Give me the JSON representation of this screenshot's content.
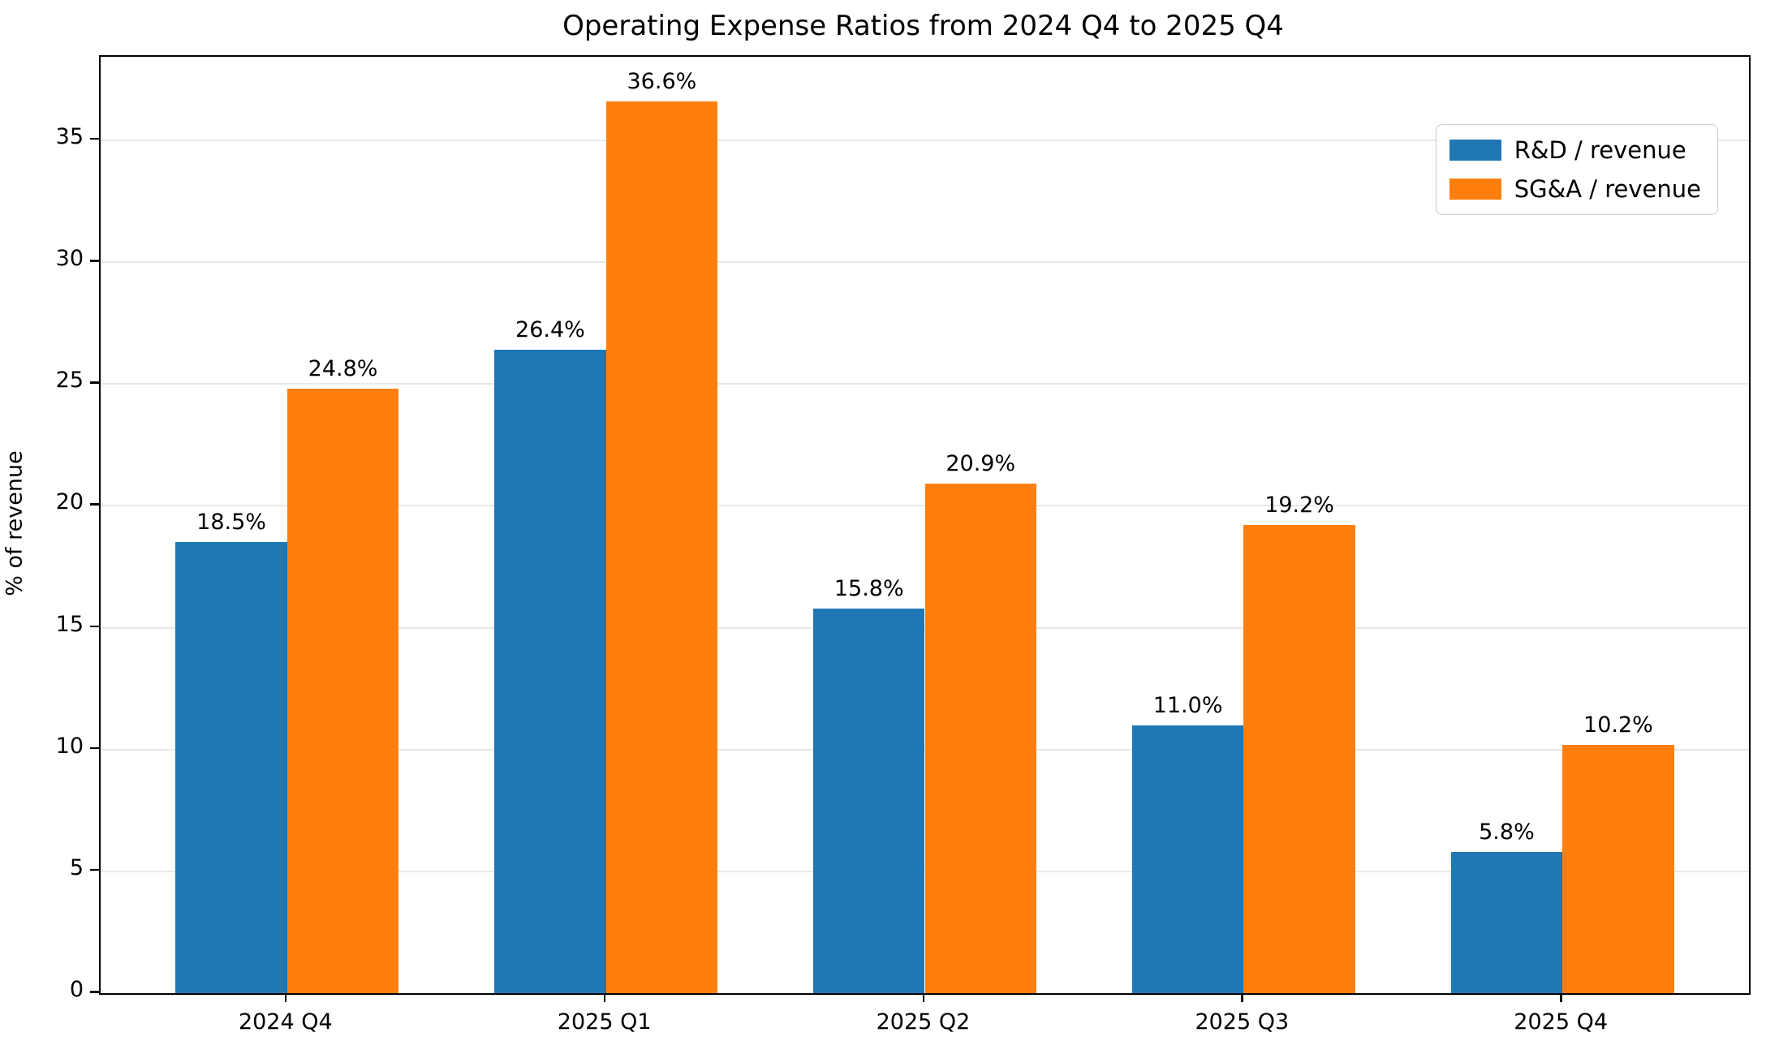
{
  "title": "Operating Expense Ratios from 2024 Q4 to 2025 Q4",
  "chart_data": {
    "type": "bar",
    "title": "Operating Expense Ratios from 2024 Q4 to 2025 Q4",
    "categories": [
      "2024 Q4",
      "2025 Q1",
      "2025 Q2",
      "2025 Q3",
      "2025 Q4"
    ],
    "series": [
      {
        "name": "R&D / revenue",
        "color": "#1f77b4",
        "values": [
          18.5,
          26.4,
          15.8,
          11.0,
          5.8
        ]
      },
      {
        "name": "SG&A / revenue",
        "color": "#ff7f0e",
        "values": [
          24.8,
          36.6,
          20.9,
          19.2,
          10.2
        ]
      }
    ],
    "bar_labels": [
      [
        "18.5%",
        "26.4%",
        "15.8%",
        "11.0%",
        "5.8%"
      ],
      [
        "24.8%",
        "36.6%",
        "20.9%",
        "19.2%",
        "10.2%"
      ]
    ],
    "xlabel": "",
    "ylabel": "% of revenue",
    "yticks": [
      "0",
      "5",
      "10",
      "15",
      "20",
      "25",
      "30",
      "35"
    ],
    "ytick_values": [
      0,
      5,
      10,
      15,
      20,
      25,
      30,
      35
    ],
    "ylim": [
      0,
      38.43
    ],
    "bar_width_units": 0.35,
    "grid": "horizontal",
    "grid_color": "#e8e8e8",
    "legend_position": "upper right",
    "background_color": "#ffffff",
    "text_color": "#000000"
  }
}
